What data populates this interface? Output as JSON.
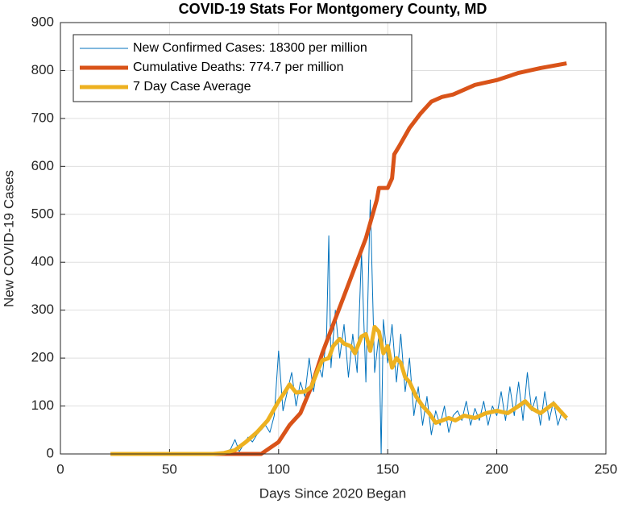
{
  "chart_data": {
    "type": "line",
    "title": "COVID-19 Stats For Montgomery County, MD",
    "xlabel": "Days Since 2020 Began",
    "ylabel": "New COVID-19 Cases",
    "xlim": [
      0,
      250
    ],
    "xticks": [
      0,
      50,
      100,
      150,
      200,
      250
    ],
    "ylim": [
      0,
      900
    ],
    "yticks": [
      0,
      100,
      200,
      300,
      400,
      500,
      600,
      700,
      800,
      900
    ],
    "grid": true,
    "legend": "top-left",
    "series": [
      {
        "name": "New Confirmed Cases: 18300 per million",
        "color": "#0072BD",
        "width": 1,
        "x": [
          23,
          40,
          60,
          68,
          70,
          72,
          74,
          76,
          78,
          80,
          82,
          84,
          86,
          88,
          90,
          92,
          94,
          96,
          98,
          100,
          102,
          104,
          106,
          108,
          110,
          112,
          114,
          116,
          118,
          120,
          122,
          123,
          124,
          126,
          128,
          130,
          132,
          134,
          136,
          138,
          140,
          142,
          144,
          146,
          147,
          148,
          150,
          152,
          154,
          156,
          158,
          160,
          162,
          164,
          166,
          168,
          170,
          172,
          174,
          176,
          178,
          180,
          182,
          184,
          186,
          188,
          190,
          192,
          194,
          196,
          198,
          200,
          202,
          204,
          206,
          208,
          210,
          212,
          214,
          216,
          218,
          220,
          222,
          224,
          226,
          228,
          230,
          232
        ],
        "values": [
          0,
          0,
          0,
          0,
          0,
          0,
          2,
          5,
          10,
          30,
          5,
          20,
          35,
          25,
          40,
          50,
          60,
          45,
          80,
          215,
          90,
          130,
          170,
          100,
          150,
          120,
          200,
          130,
          190,
          160,
          250,
          455,
          180,
          300,
          200,
          270,
          160,
          250,
          170,
          420,
          150,
          530,
          170,
          250,
          0,
          280,
          190,
          270,
          150,
          250,
          130,
          200,
          80,
          140,
          60,
          120,
          40,
          90,
          60,
          100,
          45,
          80,
          90,
          70,
          110,
          60,
          95,
          70,
          110,
          60,
          100,
          80,
          130,
          70,
          140,
          80,
          150,
          70,
          170,
          90,
          120,
          60,
          130,
          70,
          110,
          60,
          90,
          70
        ]
      },
      {
        "name": "Cumulative Deaths: 774.7 per million",
        "color": "#D95319",
        "width": 5,
        "x": [
          23,
          60,
          92,
          100,
          105,
          110,
          115,
          120,
          125,
          130,
          135,
          140,
          145,
          146,
          150,
          152,
          153,
          155,
          160,
          165,
          170,
          175,
          180,
          190,
          200,
          210,
          220,
          232
        ],
        "values": [
          0,
          0,
          0,
          25,
          60,
          85,
          140,
          210,
          270,
          330,
          390,
          450,
          530,
          555,
          555,
          575,
          625,
          640,
          680,
          710,
          735,
          745,
          750,
          770,
          780,
          795,
          805,
          815
        ]
      },
      {
        "name": "7 Day Case Average",
        "color": "#EDB120",
        "width": 5,
        "x": [
          23,
          70,
          75,
          80,
          85,
          90,
          95,
          100,
          103,
          105,
          108,
          112,
          115,
          118,
          120,
          123,
          125,
          128,
          130,
          133,
          135,
          138,
          140,
          142,
          144,
          146,
          148,
          150,
          152,
          154,
          156,
          158,
          160,
          163,
          166,
          169,
          172,
          175,
          178,
          181,
          185,
          190,
          195,
          200,
          205,
          210,
          213,
          216,
          220,
          223,
          226,
          229,
          232
        ],
        "values": [
          0,
          0,
          2,
          8,
          25,
          45,
          70,
          110,
          130,
          145,
          128,
          130,
          140,
          175,
          195,
          200,
          225,
          240,
          230,
          225,
          210,
          245,
          250,
          215,
          265,
          255,
          210,
          225,
          180,
          200,
          190,
          160,
          150,
          120,
          100,
          85,
          65,
          70,
          75,
          70,
          80,
          75,
          85,
          90,
          85,
          100,
          110,
          95,
          85,
          95,
          105,
          90,
          75
        ]
      }
    ]
  }
}
